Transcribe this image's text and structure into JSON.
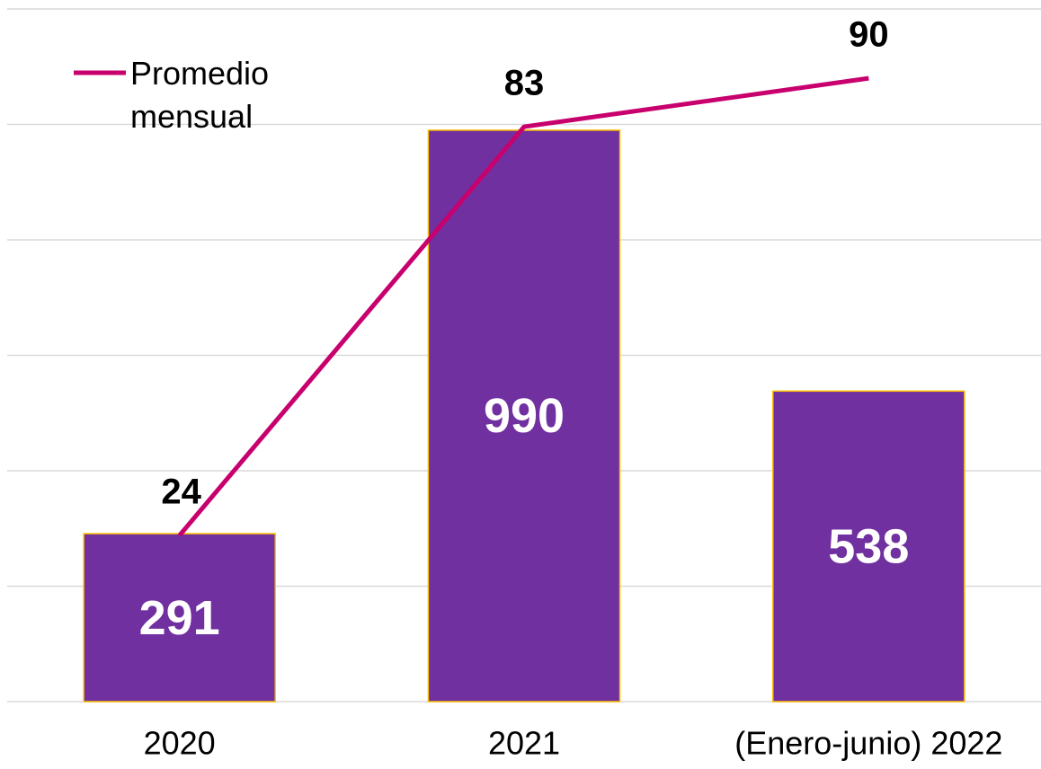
{
  "chart_data": {
    "type": "bar",
    "categories": [
      "2020",
      "2021",
      "(Enero-junio) 2022"
    ],
    "series": [
      {
        "type": "bar",
        "color": "#7030a0",
        "values": [
          291,
          990,
          538
        ]
      },
      {
        "type": "line",
        "name": "Promedio mensual",
        "color": "#c8006e",
        "values": [
          24,
          83,
          90
        ],
        "axis": "y2"
      }
    ],
    "ylim": [
      0,
      1200
    ],
    "yticks": [
      0,
      200,
      400,
      600,
      800,
      1000,
      1200
    ],
    "y2lim": [
      0,
      100
    ],
    "grid": true,
    "legend": "top-left"
  }
}
